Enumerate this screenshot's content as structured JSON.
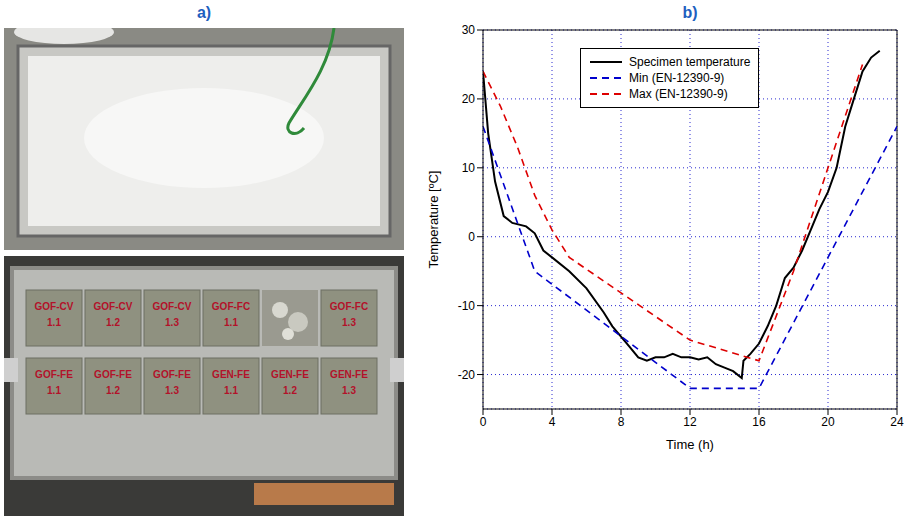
{
  "panel_a": {
    "title": "a)",
    "specimens": [
      [
        {
          "label": "GOF-CV",
          "number": "1.1"
        },
        {
          "label": "GOF-CV",
          "number": "1.2"
        },
        {
          "label": "GOF-CV",
          "number": "1.3"
        },
        {
          "label": "GOF-FC",
          "number": "1.1"
        },
        null,
        {
          "label": "GOF-FC",
          "number": "1.3"
        }
      ],
      [
        {
          "label": "GOF-FE",
          "number": "1.1"
        },
        {
          "label": "GOF-FE",
          "number": "1.2"
        },
        {
          "label": "GOF-FE",
          "number": "1.3"
        },
        {
          "label": "GEN-FE",
          "number": "1.1"
        },
        {
          "label": "GEN-FE",
          "number": "1.2"
        },
        {
          "label": "GEN-FE",
          "number": "1.3"
        }
      ]
    ]
  },
  "chart_data": {
    "type": "line",
    "title": "b)",
    "x_label": "Time (h)",
    "y_label": "Temperature [ºC]",
    "xlim": [
      0,
      24
    ],
    "xticks": [
      0,
      4,
      8,
      12,
      16,
      20,
      24
    ],
    "ylim": [
      -25,
      30
    ],
    "yticks": [
      -20,
      -10,
      0,
      10,
      20,
      30
    ],
    "grid": true,
    "legend": "upper center",
    "series": [
      {
        "name": "Specimen temperature",
        "color": "#000000",
        "line_style": "solid",
        "marker": "none",
        "x": [
          0,
          0.3,
          0.7,
          1.2,
          1.7,
          2.5,
          3,
          3.5,
          4,
          5,
          6,
          7,
          7.5,
          8,
          8.5,
          9,
          9.5,
          10,
          10.5,
          11,
          11.5,
          12,
          12.5,
          13,
          13.5,
          14,
          14.5,
          15,
          15.1,
          15.5,
          16,
          16.5,
          17,
          17.5,
          18,
          18.5,
          19,
          19.5,
          20,
          20.5,
          21,
          21.5,
          22,
          22.5,
          23
        ],
        "values": [
          24,
          15,
          8,
          3,
          2,
          1.5,
          0.5,
          -2,
          -3,
          -5,
          -7.5,
          -11,
          -13,
          -14.5,
          -16,
          -17.5,
          -18,
          -17.5,
          -17.5,
          -17,
          -17.5,
          -17.5,
          -17.8,
          -17.5,
          -18.5,
          -19,
          -19.5,
          -20.5,
          -18,
          -17,
          -15.5,
          -13,
          -10,
          -6,
          -4.5,
          -2,
          1,
          4,
          6.5,
          10,
          16,
          20,
          24,
          26,
          27
        ]
      },
      {
        "name": "Min (EN-12390-9)",
        "color": "#0000cc",
        "line_style": "dashed",
        "marker": "none",
        "x": [
          0,
          3,
          12,
          16,
          24
        ],
        "values": [
          16,
          -5,
          -22,
          -22,
          16
        ]
      },
      {
        "name": "Max (EN-12390-9)",
        "color": "#dd0000",
        "line_style": "dashed",
        "marker": "none",
        "x": [
          0,
          1,
          2,
          3,
          4,
          5,
          12,
          16,
          18,
          20,
          22
        ],
        "values": [
          24,
          19,
          13,
          6,
          1,
          -3,
          -15,
          -18,
          -5,
          10,
          25
        ]
      }
    ]
  }
}
